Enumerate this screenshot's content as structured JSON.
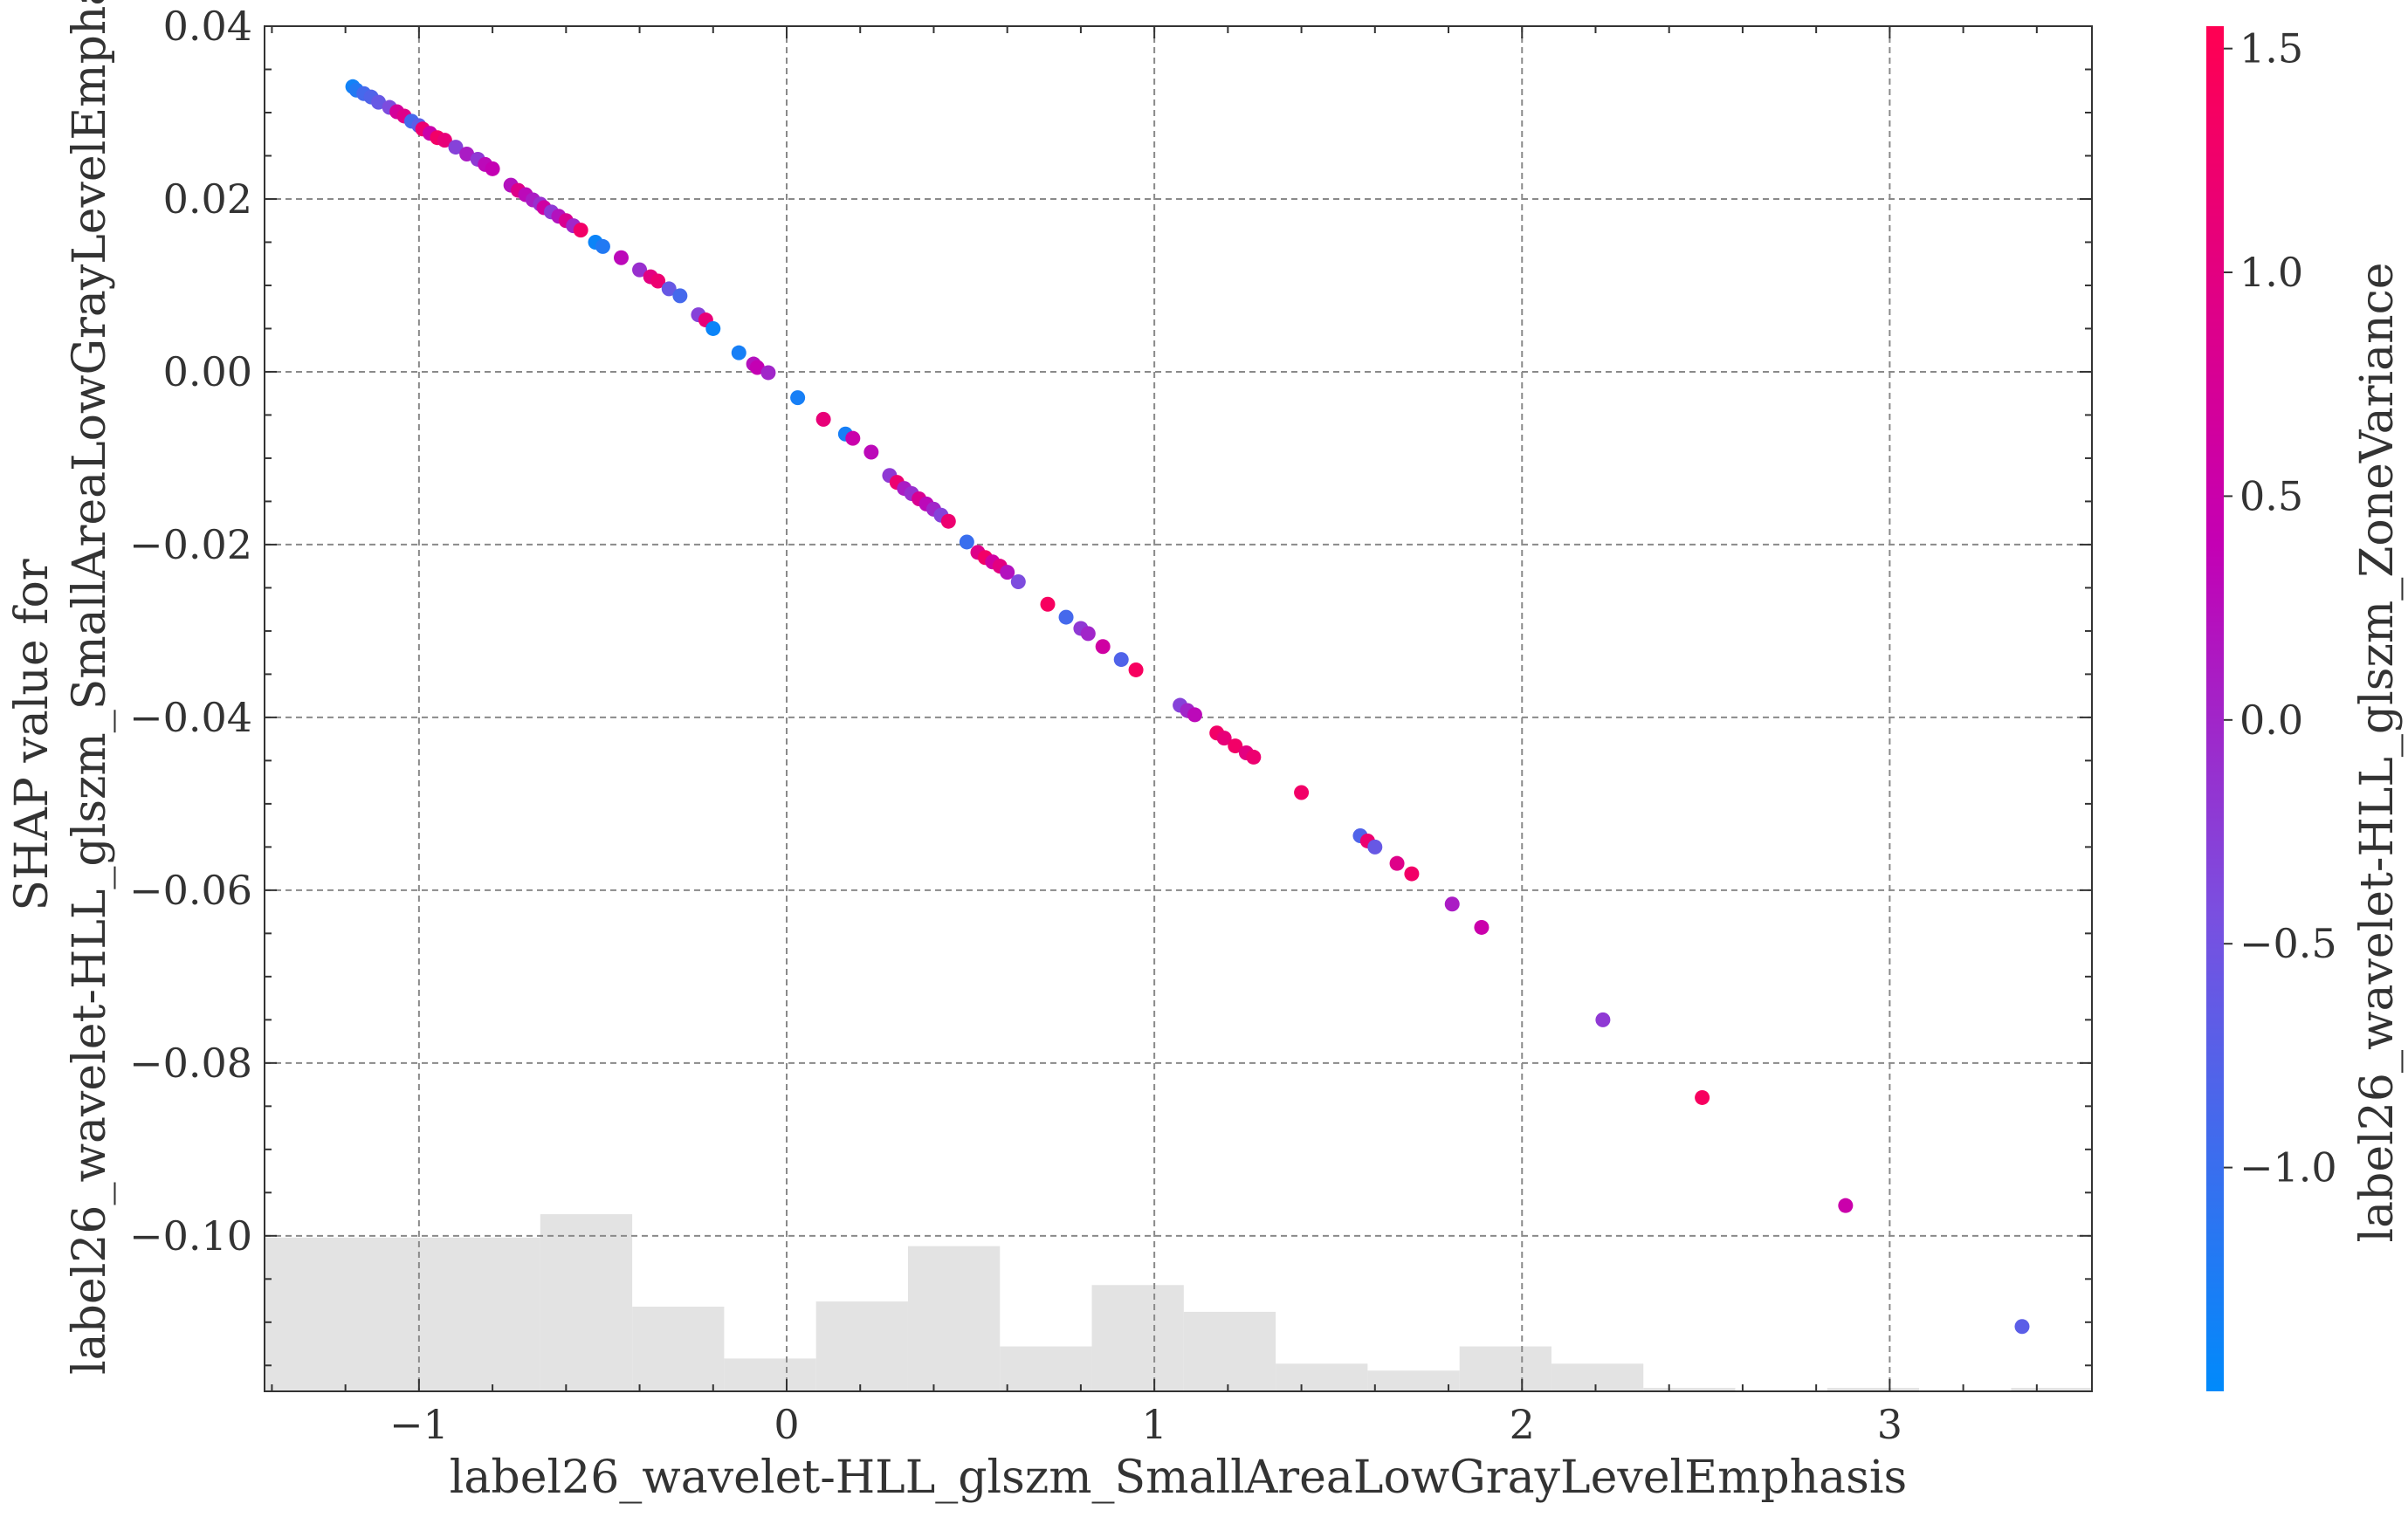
{
  "chart_data": {
    "type": "scatter",
    "xlabel": "label26_wavelet-HLL_glszm_SmallAreaLowGrayLevelEmphasis",
    "ylabel_lines": [
      "SHAP value for",
      "label26_wavelet-HLL_glszm_SmallAreaLowGrayLevelEmphas"
    ],
    "xlim": [
      -1.42,
      3.55
    ],
    "ylim": [
      -0.118,
      0.04
    ],
    "x_ticks": [
      -1,
      0,
      1,
      2,
      3
    ],
    "x_tick_labels": [
      "−1",
      "0",
      "1",
      "2",
      "3"
    ],
    "y_ticks": [
      0.04,
      0.02,
      0.0,
      -0.02,
      -0.04,
      -0.06,
      -0.08,
      -0.1
    ],
    "y_tick_labels": [
      "0.04",
      "0.02",
      "0.00",
      "−0.02",
      "−0.04",
      "−0.06",
      "−0.08",
      "−0.10"
    ],
    "grid": true,
    "colorbar": {
      "label": "label26_wavelet-HLL_glszm_ZoneVariance",
      "range": [
        -1.5,
        1.55
      ],
      "ticks": [
        1.5,
        1.0,
        0.5,
        0.0,
        -0.5,
        -1.0
      ],
      "tick_labels": [
        "1.5",
        "1.0",
        "0.5",
        "0.0",
        "−0.5",
        "−1.0"
      ],
      "colors": [
        "#008afb",
        "#7a4fe0",
        "#c400b4",
        "#ff0052"
      ]
    },
    "histogram": {
      "color": "#e3e3e3",
      "bins": [
        {
          "x0": -1.42,
          "x1": -0.67,
          "height": 0.0178
        },
        {
          "x0": -0.67,
          "x1": -0.42,
          "height": 0.0205
        },
        {
          "x0": -0.42,
          "x1": -0.17,
          "height": 0.0098
        },
        {
          "x0": -0.17,
          "x1": 0.08,
          "height": 0.0038
        },
        {
          "x0": 0.08,
          "x1": 0.33,
          "height": 0.0104
        },
        {
          "x0": 0.33,
          "x1": 0.58,
          "height": 0.0168
        },
        {
          "x0": 0.58,
          "x1": 0.83,
          "height": 0.0052
        },
        {
          "x0": 0.83,
          "x1": 1.08,
          "height": 0.0123
        },
        {
          "x0": 1.08,
          "x1": 1.33,
          "height": 0.0092
        },
        {
          "x0": 1.33,
          "x1": 1.58,
          "height": 0.0032
        },
        {
          "x0": 1.58,
          "x1": 1.83,
          "height": 0.0024
        },
        {
          "x0": 1.83,
          "x1": 2.08,
          "height": 0.0052
        },
        {
          "x0": 2.08,
          "x1": 2.33,
          "height": 0.0032
        },
        {
          "x0": 2.33,
          "x1": 2.58,
          "height": 0.0004
        },
        {
          "x0": 2.58,
          "x1": 2.83,
          "height": 0.0001
        },
        {
          "x0": 2.83,
          "x1": 3.08,
          "height": 0.0004
        },
        {
          "x0": 3.08,
          "x1": 3.33,
          "height": 0.0001
        },
        {
          "x0": 3.33,
          "x1": 3.55,
          "height": 0.0004
        }
      ]
    },
    "points": [
      {
        "x": -1.18,
        "y": 0.033,
        "c": -1.35
      },
      {
        "x": -1.17,
        "y": 0.0326,
        "c": -1.2
      },
      {
        "x": -1.15,
        "y": 0.0322,
        "c": -0.9
      },
      {
        "x": -1.13,
        "y": 0.0318,
        "c": -0.8
      },
      {
        "x": -1.11,
        "y": 0.0312,
        "c": -0.6
      },
      {
        "x": -1.08,
        "y": 0.0306,
        "c": -0.4
      },
      {
        "x": -1.06,
        "y": 0.0301,
        "c": 0.7
      },
      {
        "x": -1.04,
        "y": 0.0296,
        "c": 0.9
      },
      {
        "x": -1.02,
        "y": 0.029,
        "c": -0.9
      },
      {
        "x": -1.0,
        "y": 0.0285,
        "c": -0.7
      },
      {
        "x": -0.99,
        "y": 0.0281,
        "c": 1.2
      },
      {
        "x": -0.97,
        "y": 0.0276,
        "c": 0.5
      },
      {
        "x": -0.95,
        "y": 0.0271,
        "c": 1.3
      },
      {
        "x": -0.93,
        "y": 0.0268,
        "c": 1.1
      },
      {
        "x": -0.9,
        "y": 0.026,
        "c": -0.3
      },
      {
        "x": -0.87,
        "y": 0.0252,
        "c": 0.1
      },
      {
        "x": -0.84,
        "y": 0.0246,
        "c": -0.2
      },
      {
        "x": -0.82,
        "y": 0.024,
        "c": 0.3
      },
      {
        "x": -0.8,
        "y": 0.0235,
        "c": 0.4
      },
      {
        "x": -0.75,
        "y": 0.0216,
        "c": 0.2
      },
      {
        "x": -0.73,
        "y": 0.021,
        "c": 0.9
      },
      {
        "x": -0.71,
        "y": 0.0205,
        "c": 0.3
      },
      {
        "x": -0.69,
        "y": 0.0199,
        "c": 0.1
      },
      {
        "x": -0.67,
        "y": 0.0194,
        "c": -0.1
      },
      {
        "x": -0.66,
        "y": 0.019,
        "c": 0.6
      },
      {
        "x": -0.64,
        "y": 0.0185,
        "c": -0.2
      },
      {
        "x": -0.62,
        "y": 0.018,
        "c": 0.2
      },
      {
        "x": -0.6,
        "y": 0.0175,
        "c": 0.8
      },
      {
        "x": -0.58,
        "y": 0.0169,
        "c": 0.0
      },
      {
        "x": -0.56,
        "y": 0.0164,
        "c": 1.3
      },
      {
        "x": -0.52,
        "y": 0.015,
        "c": -1.4
      },
      {
        "x": -0.5,
        "y": 0.0145,
        "c": -1.2
      },
      {
        "x": -0.45,
        "y": 0.0132,
        "c": 0.3
      },
      {
        "x": -0.4,
        "y": 0.0118,
        "c": -0.1
      },
      {
        "x": -0.37,
        "y": 0.011,
        "c": 1.0
      },
      {
        "x": -0.35,
        "y": 0.0105,
        "c": 1.2
      },
      {
        "x": -0.32,
        "y": 0.0096,
        "c": -0.6
      },
      {
        "x": -0.29,
        "y": 0.0088,
        "c": -0.9
      },
      {
        "x": -0.24,
        "y": 0.0066,
        "c": -0.3
      },
      {
        "x": -0.22,
        "y": 0.006,
        "c": 1.1
      },
      {
        "x": -0.2,
        "y": 0.005,
        "c": -1.4
      },
      {
        "x": -0.13,
        "y": 0.0022,
        "c": -1.3
      },
      {
        "x": -0.09,
        "y": 0.0009,
        "c": 0.2
      },
      {
        "x": -0.08,
        "y": 0.0005,
        "c": 0.4
      },
      {
        "x": -0.05,
        "y": -0.0001,
        "c": 0.0
      },
      {
        "x": 0.03,
        "y": -0.003,
        "c": -1.3
      },
      {
        "x": 0.1,
        "y": -0.0055,
        "c": 1.1
      },
      {
        "x": 0.16,
        "y": -0.0072,
        "c": -1.3
      },
      {
        "x": 0.18,
        "y": -0.0077,
        "c": 0.5
      },
      {
        "x": 0.23,
        "y": -0.0093,
        "c": 0.3
      },
      {
        "x": 0.28,
        "y": -0.012,
        "c": -0.2
      },
      {
        "x": 0.3,
        "y": -0.0128,
        "c": 1.2
      },
      {
        "x": 0.32,
        "y": -0.0135,
        "c": 0.1
      },
      {
        "x": 0.34,
        "y": -0.0141,
        "c": -0.1
      },
      {
        "x": 0.36,
        "y": -0.0147,
        "c": 0.8
      },
      {
        "x": 0.38,
        "y": -0.0153,
        "c": 0.3
      },
      {
        "x": 0.4,
        "y": -0.0159,
        "c": 0.0
      },
      {
        "x": 0.42,
        "y": -0.0166,
        "c": -0.3
      },
      {
        "x": 0.44,
        "y": -0.0173,
        "c": 1.2
      },
      {
        "x": 0.49,
        "y": -0.0197,
        "c": -1.0
      },
      {
        "x": 0.52,
        "y": -0.0209,
        "c": 0.9
      },
      {
        "x": 0.54,
        "y": -0.0215,
        "c": 1.3
      },
      {
        "x": 0.56,
        "y": -0.022,
        "c": 0.6
      },
      {
        "x": 0.58,
        "y": -0.0225,
        "c": 1.0
      },
      {
        "x": 0.6,
        "y": -0.0232,
        "c": 0.2
      },
      {
        "x": 0.63,
        "y": -0.0243,
        "c": -0.4
      },
      {
        "x": 0.71,
        "y": -0.0269,
        "c": 1.4
      },
      {
        "x": 0.76,
        "y": -0.0284,
        "c": -0.9
      },
      {
        "x": 0.8,
        "y": -0.0297,
        "c": -0.2
      },
      {
        "x": 0.82,
        "y": -0.0303,
        "c": 0.0
      },
      {
        "x": 0.86,
        "y": -0.0318,
        "c": 0.6
      },
      {
        "x": 0.91,
        "y": -0.0333,
        "c": -0.8
      },
      {
        "x": 0.95,
        "y": -0.0345,
        "c": 1.4
      },
      {
        "x": 1.07,
        "y": -0.0386,
        "c": -0.3
      },
      {
        "x": 1.09,
        "y": -0.0392,
        "c": 0.0
      },
      {
        "x": 1.11,
        "y": -0.0397,
        "c": 0.3
      },
      {
        "x": 1.17,
        "y": -0.0418,
        "c": 1.3
      },
      {
        "x": 1.19,
        "y": -0.0424,
        "c": 1.1
      },
      {
        "x": 1.22,
        "y": -0.0433,
        "c": 1.3
      },
      {
        "x": 1.25,
        "y": -0.0441,
        "c": 1.0
      },
      {
        "x": 1.27,
        "y": -0.0446,
        "c": 1.2
      },
      {
        "x": 1.4,
        "y": -0.0487,
        "c": 1.3
      },
      {
        "x": 1.56,
        "y": -0.0537,
        "c": -0.8
      },
      {
        "x": 1.58,
        "y": -0.0543,
        "c": 1.2
      },
      {
        "x": 1.6,
        "y": -0.055,
        "c": -0.6
      },
      {
        "x": 1.66,
        "y": -0.0569,
        "c": 0.9
      },
      {
        "x": 1.7,
        "y": -0.0581,
        "c": 1.3
      },
      {
        "x": 1.81,
        "y": -0.0616,
        "c": 0.1
      },
      {
        "x": 1.89,
        "y": -0.0643,
        "c": 0.5
      },
      {
        "x": 2.22,
        "y": -0.075,
        "c": -0.2
      },
      {
        "x": 2.49,
        "y": -0.084,
        "c": 1.4
      },
      {
        "x": 2.88,
        "y": -0.0965,
        "c": 0.5
      },
      {
        "x": 3.36,
        "y": -0.1105,
        "c": -0.7
      }
    ]
  }
}
